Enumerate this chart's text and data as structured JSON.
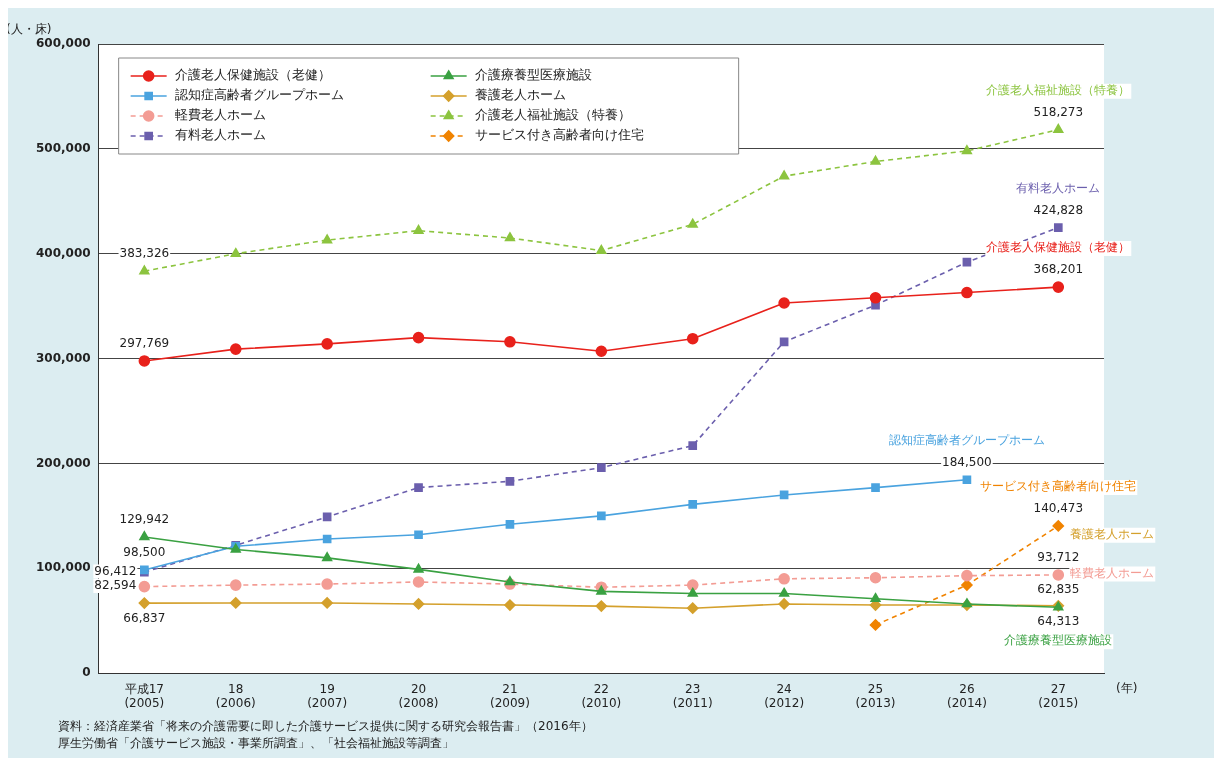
{
  "chart_data": {
    "type": "line",
    "xlabel": "(年)",
    "ylabel": "(人・床)",
    "categories": [
      "平成17\n(2005)",
      "18\n(2006)",
      "19\n(2007)",
      "20\n(2008)",
      "21\n(2009)",
      "22\n(2010)",
      "23\n(2011)",
      "24\n(2012)",
      "25\n(2013)",
      "26\n(2014)",
      "27\n(2015)"
    ],
    "ylim": [
      0,
      600000
    ],
    "yticks": [
      {
        "value": 0,
        "label": "0"
      },
      {
        "value": 100000,
        "label": "100,000"
      },
      {
        "value": 200000,
        "label": "200,000"
      },
      {
        "value": 300000,
        "label": "300,000"
      },
      {
        "value": 400000,
        "label": "400,000"
      },
      {
        "value": 500000,
        "label": "500,000"
      },
      {
        "value": 600000,
        "label": "600,000"
      }
    ],
    "grid": "y",
    "legend": "top left",
    "series": [
      {
        "name": "介護老人保健施設（老健）",
        "color": "#e8211b",
        "marker": "circle",
        "line_style": "solid",
        "values": [
          297769,
          309000,
          314000,
          320000,
          316000,
          307000,
          319000,
          353000,
          358000,
          363000,
          368201
        ],
        "value_labels": [
          "297,769",
          null,
          null,
          null,
          null,
          null,
          null,
          null,
          null,
          null,
          "368,201"
        ]
      },
      {
        "name": "介護療養型医療施設",
        "color": "#3aa142",
        "marker": "triangle",
        "line_style": "solid",
        "values": [
          129942,
          118000,
          110000,
          99000,
          87000,
          78000,
          76000,
          76000,
          71000,
          66000,
          62835
        ],
        "value_labels": [
          "129,942",
          null,
          null,
          null,
          null,
          null,
          null,
          null,
          null,
          null,
          "62,835"
        ]
      },
      {
        "name": "認知症高齢者グループホーム",
        "color": "#4aa3df",
        "marker": "square",
        "line_style": "solid",
        "values": [
          98500,
          121000,
          128000,
          132000,
          142000,
          150000,
          161000,
          170000,
          177000,
          184500,
          null
        ],
        "value_labels": [
          "98,500",
          null,
          null,
          null,
          null,
          null,
          null,
          null,
          null,
          "184,500",
          null
        ]
      },
      {
        "name": "養護老人ホーム",
        "color": "#d4a02c",
        "marker": "diamond",
        "line_style": "solid",
        "values": [
          66837,
          67000,
          67000,
          66000,
          65000,
          64000,
          62000,
          66000,
          65000,
          65000,
          64313
        ],
        "value_labels": [
          "66,837",
          null,
          null,
          null,
          null,
          null,
          null,
          null,
          null,
          null,
          "64,313"
        ]
      },
      {
        "name": "軽費老人ホーム",
        "color": "#f39c94",
        "marker": "circle",
        "line_style": "dashed",
        "values": [
          82594,
          84000,
          85000,
          87000,
          85000,
          82000,
          84000,
          90000,
          91000,
          93000,
          93712
        ],
        "value_labels": [
          "82,594",
          null,
          null,
          null,
          null,
          null,
          null,
          null,
          null,
          null,
          "93,712"
        ]
      },
      {
        "name": "介護老人福祉施設（特養）",
        "color": "#8cc43f",
        "marker": "triangle",
        "line_style": "dashed",
        "values": [
          383326,
          400000,
          413000,
          422000,
          415000,
          403000,
          428000,
          474000,
          488000,
          498000,
          518273
        ],
        "value_labels": [
          "383,326",
          null,
          null,
          null,
          null,
          null,
          null,
          null,
          null,
          null,
          "518,273"
        ]
      },
      {
        "name": "有料老人ホーム",
        "color": "#6b5fad",
        "marker": "square",
        "line_style": "dashed",
        "values": [
          96412,
          122000,
          149000,
          177000,
          183000,
          196000,
          217000,
          316000,
          351000,
          392000,
          424828
        ],
        "value_labels": [
          "96,412",
          null,
          null,
          null,
          null,
          null,
          null,
          null,
          null,
          null,
          "424,828"
        ]
      },
      {
        "name": "サービス付き高齢者向け住宅",
        "color": "#f08300",
        "marker": "diamond",
        "line_style": "dashed",
        "values": [
          null,
          null,
          null,
          null,
          null,
          null,
          null,
          null,
          46000,
          84000,
          140473
        ],
        "value_labels": [
          null,
          null,
          null,
          null,
          null,
          null,
          null,
          null,
          null,
          null,
          "140,473"
        ]
      }
    ],
    "annotations": [
      "資料：経済産業省「将来の介護需要に即した介護サービス提供に関する研究会報告書」（2016年）",
      "厚生労働省「介護サービス施設・事業所調査」、「社会福祉施設等調査」"
    ]
  }
}
